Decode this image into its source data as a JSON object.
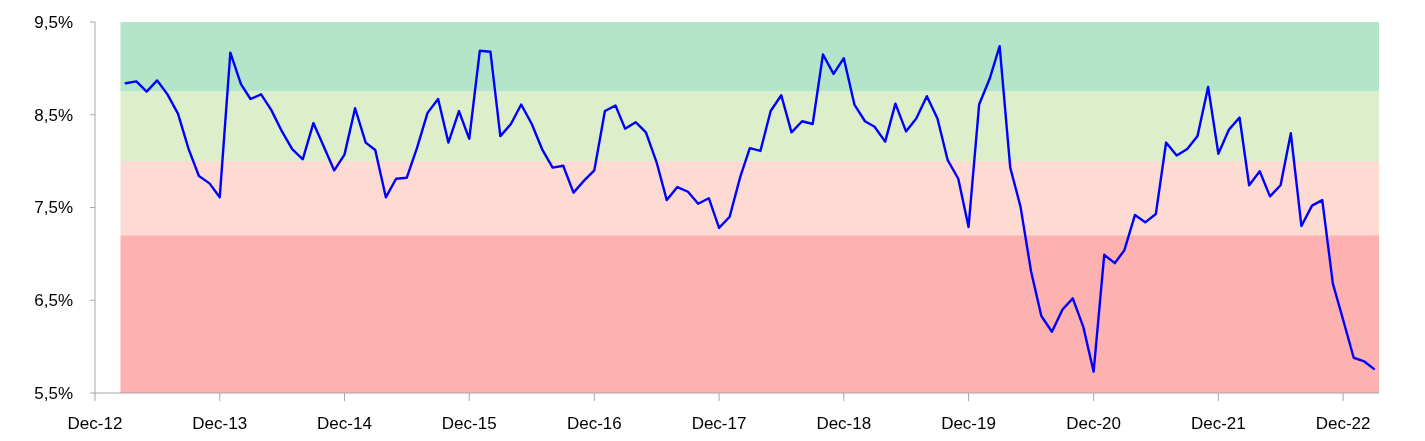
{
  "chart_data": {
    "type": "line",
    "x": [
      "2013-03",
      "2013-04",
      "2013-05",
      "2013-06",
      "2013-07",
      "2013-08",
      "2013-09",
      "2013-10",
      "2013-11",
      "2013-12",
      "2014-01",
      "2014-02",
      "2014-03",
      "2014-04",
      "2014-05",
      "2014-06",
      "2014-07",
      "2014-08",
      "2014-09",
      "2014-10",
      "2014-11",
      "2014-12",
      "2015-01",
      "2015-02",
      "2015-03",
      "2015-04",
      "2015-05",
      "2015-06",
      "2015-07",
      "2015-08",
      "2015-09",
      "2015-10",
      "2015-11",
      "2015-12",
      "2016-01",
      "2016-02",
      "2016-03",
      "2016-04",
      "2016-05",
      "2016-06",
      "2016-07",
      "2016-08",
      "2016-09",
      "2016-10",
      "2016-11",
      "2016-12",
      "2017-01",
      "2017-02",
      "2017-03",
      "2017-04",
      "2017-05",
      "2017-06",
      "2017-07",
      "2017-08",
      "2017-09",
      "2017-10",
      "2017-11",
      "2017-12",
      "2018-01",
      "2018-02",
      "2018-03",
      "2018-04",
      "2018-05",
      "2018-06",
      "2018-07",
      "2018-08",
      "2018-09",
      "2018-10",
      "2018-11",
      "2018-12",
      "2019-01",
      "2019-02",
      "2019-03",
      "2019-04",
      "2019-05",
      "2019-06",
      "2019-07",
      "2019-08",
      "2019-09",
      "2019-10",
      "2019-11",
      "2019-12",
      "2020-01",
      "2020-02",
      "2020-03",
      "2020-04",
      "2020-05",
      "2020-06",
      "2020-07",
      "2020-08",
      "2020-09",
      "2020-10",
      "2020-11",
      "2020-12",
      "2021-01",
      "2021-02",
      "2021-03",
      "2021-04",
      "2021-05",
      "2021-06",
      "2021-07",
      "2021-08",
      "2021-09",
      "2021-10",
      "2021-11",
      "2021-12",
      "2022-01",
      "2022-02",
      "2022-03",
      "2022-04",
      "2022-05",
      "2022-06",
      "2022-07",
      "2022-08",
      "2022-09",
      "2022-10",
      "2022-11",
      "2022-12",
      "2023-01",
      "2023-02",
      "2023-03"
    ],
    "series": [
      {
        "color": "#0000ff",
        "values": [
          8.84,
          8.86,
          8.75,
          8.87,
          8.72,
          8.51,
          8.13,
          7.84,
          7.76,
          7.61,
          9.17,
          8.83,
          8.67,
          8.72,
          8.55,
          8.32,
          8.13,
          8.02,
          8.41,
          8.16,
          7.9,
          8.07,
          8.57,
          8.2,
          8.12,
          7.61,
          7.81,
          7.82,
          8.14,
          8.52,
          8.67,
          8.2,
          8.54,
          8.24,
          9.19,
          9.18,
          8.27,
          8.4,
          8.61,
          8.4,
          8.13,
          7.93,
          7.95,
          7.66,
          7.79,
          7.9,
          8.54,
          8.6,
          8.35,
          8.42,
          8.31,
          7.99,
          7.58,
          7.72,
          7.67,
          7.54,
          7.6,
          7.28,
          7.4,
          7.83,
          8.14,
          8.11,
          8.54,
          8.71,
          8.31,
          8.43,
          8.4,
          9.15,
          8.94,
          9.11,
          8.61,
          8.43,
          8.37,
          8.21,
          8.62,
          8.32,
          8.46,
          8.7,
          8.46,
          8.01,
          7.81,
          7.29,
          8.61,
          8.89,
          9.24,
          7.93,
          7.51,
          6.81,
          6.33,
          6.16,
          6.4,
          6.52,
          6.21,
          5.73,
          6.99,
          6.9,
          7.04,
          7.42,
          7.34,
          7.43,
          8.2,
          8.06,
          8.13,
          8.27,
          8.8,
          8.08,
          8.34,
          8.47,
          7.74,
          7.89,
          7.62,
          7.74,
          8.3,
          7.3,
          7.52,
          7.58,
          6.68,
          6.29,
          5.88,
          5.84,
          5.76
        ]
      }
    ],
    "xlim": [
      "2012-12",
      "2023-03-16"
    ],
    "xticks": [
      {
        "value": "2012-12",
        "label": "Dec-12"
      },
      {
        "value": "2013-12",
        "label": "Dec-13"
      },
      {
        "value": "2014-12",
        "label": "Dec-14"
      },
      {
        "value": "2015-12",
        "label": "Dec-15"
      },
      {
        "value": "2016-12",
        "label": "Dec-16"
      },
      {
        "value": "2017-12",
        "label": "Dec-17"
      },
      {
        "value": "2018-12",
        "label": "Dec-18"
      },
      {
        "value": "2019-12",
        "label": "Dec-19"
      },
      {
        "value": "2020-12",
        "label": "Dec-20"
      },
      {
        "value": "2021-12",
        "label": "Dec-21"
      },
      {
        "value": "2022-12",
        "label": "Dec-22"
      }
    ],
    "ylim": [
      5.5,
      9.5
    ],
    "yticks": [
      {
        "value": 5.5,
        "label": "5,5%"
      },
      {
        "value": 6.5,
        "label": "6,5%"
      },
      {
        "value": 7.5,
        "label": "7,5%"
      },
      {
        "value": 8.5,
        "label": "8,5%"
      },
      {
        "value": 9.5,
        "label": "9,5%"
      }
    ],
    "bands": [
      {
        "axis": "y",
        "from": 8.75,
        "to": 9.5,
        "color": "#b3e6c8"
      },
      {
        "axis": "y",
        "from": 8.0,
        "to": 8.75,
        "color": "#ddeecb"
      },
      {
        "axis": "y",
        "from": 7.2,
        "to": 8.0,
        "color": "#fddbd2"
      },
      {
        "axis": "y",
        "from": 5.5,
        "to": 7.2,
        "color": "#feb1b1"
      }
    ],
    "grid": false
  }
}
